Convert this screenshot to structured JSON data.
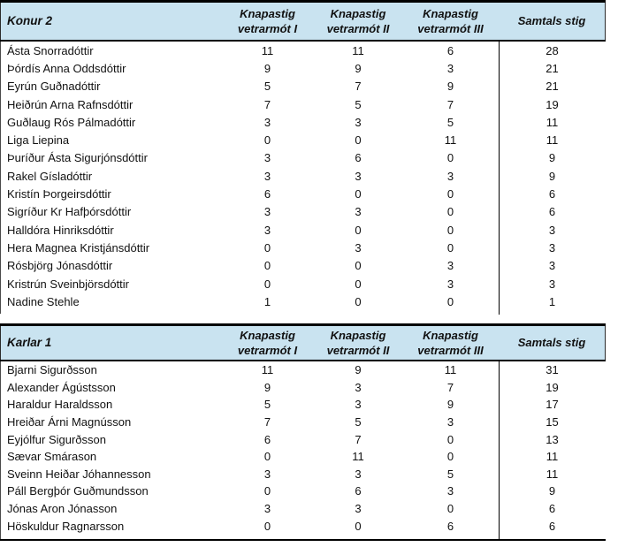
{
  "colors": {
    "header_bg": "#C9E3F0",
    "border": "#000000",
    "text": "#111111"
  },
  "tables": [
    {
      "group_label": "Konur 2",
      "meet_columns": [
        {
          "line1": "Knapastig",
          "line2": "vetrarmót I"
        },
        {
          "line1": "Knapastig",
          "line2": "vetrarmót II"
        },
        {
          "line1": "Knapastig",
          "line2": "vetrarmót III"
        }
      ],
      "total_label": "Samtals stig",
      "rows": [
        [
          "Ásta Snorradóttir",
          11,
          11,
          6,
          28
        ],
        [
          "Þórdís Anna Oddsdóttir",
          9,
          9,
          3,
          21
        ],
        [
          "Eyrún Guðnadóttir",
          5,
          7,
          9,
          21
        ],
        [
          "Heiðrún Arna Rafnsdóttir",
          7,
          5,
          7,
          19
        ],
        [
          "Guðlaug Rós Pálmadóttir",
          3,
          3,
          5,
          11
        ],
        [
          "Liga Liepina",
          0,
          0,
          11,
          11
        ],
        [
          "Þuríður Ásta Sigurjónsdóttir",
          3,
          6,
          0,
          9
        ],
        [
          "Rakel Gísladóttir",
          3,
          3,
          3,
          9
        ],
        [
          "Kristín Þorgeirsdóttir",
          6,
          0,
          0,
          6
        ],
        [
          "Sigríður Kr Hafþórsdóttir",
          3,
          3,
          0,
          6
        ],
        [
          "Halldóra Hinriksdóttir",
          3,
          0,
          0,
          3
        ],
        [
          "Hera Magnea Kristjánsdóttir",
          0,
          3,
          0,
          3
        ],
        [
          "Rósbjörg Jónasdóttir",
          0,
          0,
          3,
          3
        ],
        [
          "Kristrún Sveinbjörsdóttir",
          0,
          0,
          3,
          3
        ],
        [
          "Nadine Stehle",
          1,
          0,
          0,
          1
        ]
      ]
    },
    {
      "group_label": "Karlar 1",
      "meet_columns": [
        {
          "line1": "Knapastig",
          "line2": "vetrarmót I"
        },
        {
          "line1": "Knapastig",
          "line2": "vetrarmót II"
        },
        {
          "line1": "Knapastig",
          "line2": "vetrarmót III"
        }
      ],
      "total_label": "Samtals stig",
      "rows": [
        [
          "Bjarni Sigurðsson",
          11,
          9,
          11,
          31
        ],
        [
          "Alexander Ágústsson",
          9,
          3,
          7,
          19
        ],
        [
          "Haraldur Haraldsson",
          5,
          3,
          9,
          17
        ],
        [
          "Hreiðar Árni Magnússon",
          7,
          5,
          3,
          15
        ],
        [
          "Eyjólfur Sigurðsson",
          6,
          7,
          0,
          13
        ],
        [
          "Sævar Smárason",
          0,
          11,
          0,
          11
        ],
        [
          "Sveinn Heiðar Jóhannesson",
          3,
          3,
          5,
          11
        ],
        [
          "Páll Bergþór Guðmundsson",
          0,
          6,
          3,
          9
        ],
        [
          "Jónas Aron Jónasson",
          3,
          3,
          0,
          6
        ],
        [
          "Höskuldur Ragnarsson",
          0,
          0,
          6,
          6
        ]
      ]
    }
  ]
}
